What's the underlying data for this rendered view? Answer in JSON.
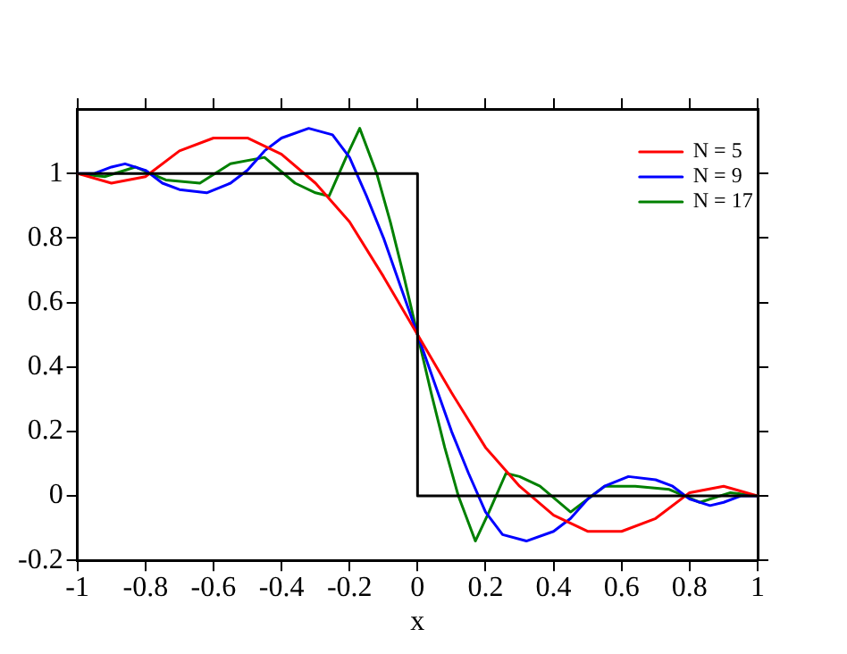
{
  "chart_data": {
    "type": "line",
    "xlabel": "x",
    "xlim": [
      -1,
      1
    ],
    "xticks": [
      -1,
      -0.8,
      -0.6,
      -0.4,
      -0.2,
      0,
      0.2,
      0.4,
      0.6,
      0.8,
      1
    ],
    "ylim": [
      -0.2,
      1.2
    ],
    "yticks": [
      -0.2,
      0,
      0.2,
      0.4,
      0.6,
      0.8,
      1
    ],
    "grid": false,
    "legend": "top right",
    "marker": "none",
    "line_style": "solid",
    "series": [
      {
        "color": "#000000",
        "x": [
          -1,
          0,
          0,
          1
        ],
        "values": [
          1,
          1,
          0,
          0
        ]
      },
      {
        "name": "N = 5",
        "color": "#ff0000",
        "x": [
          -1,
          -0.9,
          -0.8,
          -0.7,
          -0.6,
          -0.5,
          -0.4,
          -0.3,
          -0.2,
          -0.1,
          0,
          0.1,
          0.2,
          0.3,
          0.4,
          0.5,
          0.6,
          0.7,
          0.8,
          0.9,
          1
        ],
        "values": [
          1,
          0.97,
          0.99,
          1.07,
          1.11,
          1.11,
          1.06,
          0.97,
          0.85,
          0.68,
          0.5,
          0.32,
          0.15,
          0.03,
          -0.06,
          -0.11,
          -0.11,
          -0.07,
          0.01,
          0.03,
          0
        ]
      },
      {
        "name": "N = 9",
        "color": "#0000ff",
        "x": [
          -1,
          -0.95,
          -0.9,
          -0.86,
          -0.8,
          -0.75,
          -0.7,
          -0.62,
          -0.55,
          -0.5,
          -0.45,
          -0.4,
          -0.32,
          -0.25,
          -0.2,
          -0.15,
          -0.1,
          -0.05,
          0,
          0.05,
          0.1,
          0.15,
          0.2,
          0.25,
          0.32,
          0.4,
          0.45,
          0.5,
          0.55,
          0.62,
          0.7,
          0.75,
          0.8,
          0.86,
          0.9,
          0.95,
          1
        ],
        "values": [
          1,
          1,
          1.02,
          1.03,
          1.01,
          0.97,
          0.95,
          0.94,
          0.97,
          1.01,
          1.07,
          1.11,
          1.14,
          1.12,
          1.05,
          0.93,
          0.8,
          0.65,
          0.5,
          0.35,
          0.2,
          0.07,
          -0.05,
          -0.12,
          -0.14,
          -0.11,
          -0.07,
          -0.01,
          0.03,
          0.06,
          0.05,
          0.03,
          -0.01,
          -0.03,
          -0.02,
          0,
          0
        ]
      },
      {
        "name": "N = 17",
        "color": "#008000",
        "x": [
          -1,
          -0.92,
          -0.83,
          -0.74,
          -0.64,
          -0.55,
          -0.45,
          -0.36,
          -0.3,
          -0.26,
          -0.21,
          -0.17,
          -0.12,
          -0.08,
          -0.04,
          0,
          0.04,
          0.08,
          0.12,
          0.17,
          0.21,
          0.26,
          0.3,
          0.36,
          0.45,
          0.55,
          0.64,
          0.74,
          0.83,
          0.92,
          1
        ],
        "values": [
          1,
          0.99,
          1.02,
          0.98,
          0.97,
          1.03,
          1.05,
          0.97,
          0.94,
          0.93,
          1.05,
          1.14,
          1,
          0.85,
          0.68,
          0.5,
          0.32,
          0.15,
          0,
          -0.14,
          -0.05,
          0.07,
          0.06,
          0.03,
          -0.05,
          0.03,
          0.03,
          0.02,
          -0.02,
          0.01,
          0
        ]
      }
    ]
  }
}
